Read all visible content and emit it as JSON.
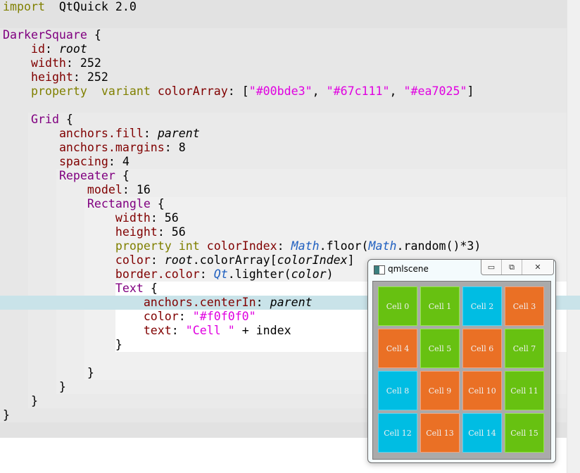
{
  "editor": {
    "lines": [
      [
        [
          "kw",
          "import"
        ],
        [
          "",
          "  QtQuick 2.0"
        ]
      ],
      [],
      [
        [
          "ty",
          "DarkerSquare"
        ],
        [
          "",
          " {"
        ]
      ],
      [
        [
          "",
          "    "
        ],
        [
          "pr",
          "id"
        ],
        [
          "",
          ": "
        ],
        [
          "it",
          "root"
        ]
      ],
      [
        [
          "",
          "    "
        ],
        [
          "pr",
          "width"
        ],
        [
          "",
          ": 252"
        ]
      ],
      [
        [
          "",
          "    "
        ],
        [
          "pr",
          "height"
        ],
        [
          "",
          ": 252"
        ]
      ],
      [
        [
          "",
          "    "
        ],
        [
          "kw",
          "property  variant"
        ],
        [
          "",
          " "
        ],
        [
          "pr",
          "colorArray"
        ],
        [
          "",
          ": ["
        ],
        [
          "st",
          "\"#00bde3\""
        ],
        [
          "",
          ", "
        ],
        [
          "st",
          "\"#67c111\""
        ],
        [
          "",
          ", "
        ],
        [
          "st",
          "\"#ea7025\""
        ],
        [
          "",
          "]"
        ]
      ],
      [],
      [
        [
          "",
          "    "
        ],
        [
          "ty",
          "Grid"
        ],
        [
          "",
          " {"
        ]
      ],
      [
        [
          "",
          "        "
        ],
        [
          "pr",
          "anchors.fill"
        ],
        [
          "",
          ": "
        ],
        [
          "it",
          "parent"
        ]
      ],
      [
        [
          "",
          "        "
        ],
        [
          "pr",
          "anchors.margins"
        ],
        [
          "",
          ": 8"
        ]
      ],
      [
        [
          "",
          "        "
        ],
        [
          "pr",
          "spacing"
        ],
        [
          "",
          ": 4"
        ]
      ],
      [
        [
          "",
          "        "
        ],
        [
          "ty",
          "Repeater"
        ],
        [
          "",
          " {"
        ]
      ],
      [
        [
          "",
          "            "
        ],
        [
          "pr",
          "model"
        ],
        [
          "",
          ": 16"
        ]
      ],
      [
        [
          "",
          "            "
        ],
        [
          "ty",
          "Rectangle"
        ],
        [
          "",
          " {"
        ]
      ],
      [
        [
          "",
          "                "
        ],
        [
          "pr",
          "width"
        ],
        [
          "",
          ": 56"
        ]
      ],
      [
        [
          "",
          "                "
        ],
        [
          "pr",
          "height"
        ],
        [
          "",
          ": 56"
        ]
      ],
      [
        [
          "",
          "                "
        ],
        [
          "kw",
          "property int"
        ],
        [
          "",
          " "
        ],
        [
          "pr",
          "colorIndex"
        ],
        [
          "",
          ": "
        ],
        [
          "js",
          "Math"
        ],
        [
          "",
          ".floor("
        ],
        [
          "js",
          "Math"
        ],
        [
          "",
          ".random()*3)"
        ]
      ],
      [
        [
          "",
          "                "
        ],
        [
          "pr",
          "color"
        ],
        [
          "",
          ": "
        ],
        [
          "it",
          "root"
        ],
        [
          "",
          ".colorArray["
        ],
        [
          "it",
          "colorIndex"
        ],
        [
          "",
          "]"
        ]
      ],
      [
        [
          "",
          "                "
        ],
        [
          "pr",
          "border.color"
        ],
        [
          "",
          ": "
        ],
        [
          "js",
          "Qt"
        ],
        [
          "",
          ".lighter("
        ],
        [
          "it",
          "color"
        ],
        [
          "",
          ")"
        ]
      ],
      [
        [
          "",
          "                "
        ],
        [
          "ty",
          "Text"
        ],
        [
          "",
          " {"
        ]
      ],
      [
        [
          "",
          "                    "
        ],
        [
          "pr",
          "anchors.centerIn"
        ],
        [
          "",
          ": "
        ],
        [
          "it",
          "parent"
        ]
      ],
      [
        [
          "",
          "                    "
        ],
        [
          "pr",
          "color"
        ],
        [
          "",
          ": "
        ],
        [
          "st",
          "\"#f0f0f0\""
        ]
      ],
      [
        [
          "",
          "                    "
        ],
        [
          "pr",
          "text"
        ],
        [
          "",
          ": "
        ],
        [
          "st",
          "\"Cell \""
        ],
        [
          "",
          " + index"
        ]
      ],
      [
        [
          "",
          "                "
        ],
        [
          "",
          "}"
        ]
      ],
      [],
      [
        [
          "",
          "            }"
        ]
      ],
      [
        [
          "",
          "        }"
        ]
      ],
      [
        [
          "",
          "    }"
        ]
      ],
      [
        [
          "",
          "}"
        ]
      ]
    ]
  },
  "window": {
    "title": "qmlscene",
    "buttons": {
      "minimize": "▭",
      "maximize": "⧉",
      "close": "✕"
    },
    "colors": {
      "blue": "#00bde3",
      "green": "#67c111",
      "orange": "#ea7025"
    },
    "cells": [
      {
        "label": "Cell 0",
        "color": "green"
      },
      {
        "label": "Cell 1",
        "color": "green"
      },
      {
        "label": "Cell 2",
        "color": "blue"
      },
      {
        "label": "Cell 3",
        "color": "orange"
      },
      {
        "label": "Cell 4",
        "color": "orange"
      },
      {
        "label": "Cell 5",
        "color": "green"
      },
      {
        "label": "Cell 6",
        "color": "orange"
      },
      {
        "label": "Cell 7",
        "color": "green"
      },
      {
        "label": "Cell 8",
        "color": "blue"
      },
      {
        "label": "Cell 9",
        "color": "orange"
      },
      {
        "label": "Cell 10",
        "color": "orange"
      },
      {
        "label": "Cell 11",
        "color": "green"
      },
      {
        "label": "Cell 12",
        "color": "blue"
      },
      {
        "label": "Cell 13",
        "color": "orange"
      },
      {
        "label": "Cell 14",
        "color": "blue"
      },
      {
        "label": "Cell 15",
        "color": "green"
      }
    ]
  }
}
